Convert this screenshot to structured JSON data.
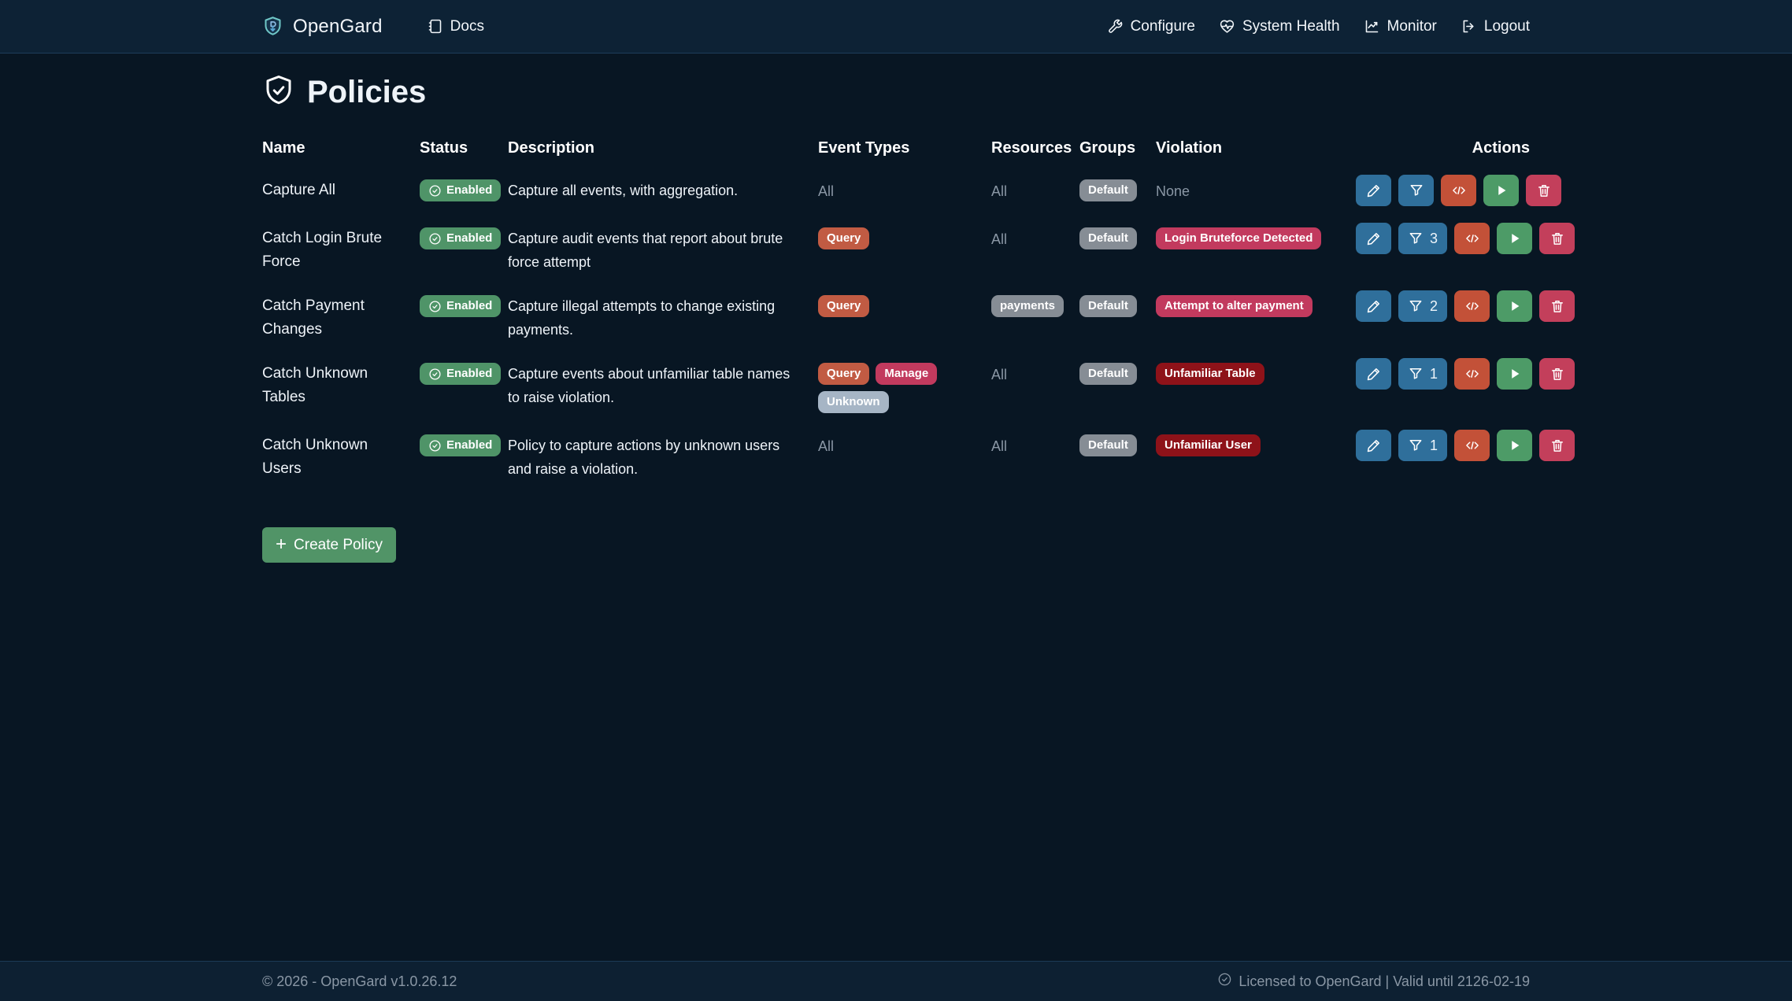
{
  "navbar": {
    "brand": "OpenGard",
    "brand_icon": "shield-logo-icon",
    "docs": {
      "label": "Docs",
      "icon": "book-icon"
    },
    "right_links": [
      {
        "label": "Configure",
        "icon": "wrench-icon"
      },
      {
        "label": "System Health",
        "icon": "heart-pulse-icon"
      },
      {
        "label": "Monitor",
        "icon": "chart-icon"
      },
      {
        "label": "Logout",
        "icon": "logout-icon"
      }
    ]
  },
  "page": {
    "title": "Policies",
    "icon": "shield-check-icon"
  },
  "table": {
    "headers": [
      "Name",
      "Status",
      "Description",
      "Event Types",
      "Resources",
      "Groups",
      "Violation",
      "Actions"
    ],
    "action_icons": [
      "pencil-icon",
      "funnel-icon",
      "code-icon",
      "play-icon",
      "trash-icon"
    ],
    "rows": [
      {
        "name": "Capture All",
        "status": "Enabled",
        "description": "Capture all events, with aggregation.",
        "event_types": [
          {
            "label": "All",
            "variant": "text"
          }
        ],
        "resources": [
          {
            "label": "All",
            "variant": "text"
          }
        ],
        "groups": [
          {
            "label": "Default",
            "variant": "gray"
          }
        ],
        "violation": [
          {
            "label": "None",
            "variant": "text"
          }
        ],
        "filter_count": ""
      },
      {
        "name": "Catch Login Brute Force",
        "status": "Enabled",
        "description": "Capture audit events that report about brute force attempt",
        "event_types": [
          {
            "label": "Query",
            "variant": "orange"
          }
        ],
        "resources": [
          {
            "label": "All",
            "variant": "text"
          }
        ],
        "groups": [
          {
            "label": "Default",
            "variant": "gray"
          }
        ],
        "violation": [
          {
            "label": "Login Bruteforce Detected",
            "variant": "crimson"
          }
        ],
        "filter_count": "3"
      },
      {
        "name": "Catch Payment Changes",
        "status": "Enabled",
        "description": "Capture illegal attempts to change existing payments.",
        "event_types": [
          {
            "label": "Query",
            "variant": "orange"
          }
        ],
        "resources": [
          {
            "label": "payments",
            "variant": "gray"
          }
        ],
        "groups": [
          {
            "label": "Default",
            "variant": "gray"
          }
        ],
        "violation": [
          {
            "label": "Attempt to alter payment",
            "variant": "crimson"
          }
        ],
        "filter_count": "2"
      },
      {
        "name": "Catch Unknown Tables",
        "status": "Enabled",
        "description": "Capture events about unfamiliar table names to raise violation.",
        "event_types": [
          {
            "label": "Query",
            "variant": "orange"
          },
          {
            "label": "Manage",
            "variant": "crimson"
          },
          {
            "label": "Unknown",
            "variant": "slate"
          }
        ],
        "resources": [
          {
            "label": "All",
            "variant": "text"
          }
        ],
        "groups": [
          {
            "label": "Default",
            "variant": "gray"
          }
        ],
        "violation": [
          {
            "label": "Unfamiliar Table",
            "variant": "darkred"
          }
        ],
        "filter_count": "1"
      },
      {
        "name": "Catch Unknown Users",
        "status": "Enabled",
        "description": "Policy to capture actions by unknown users and raise a violation.",
        "event_types": [
          {
            "label": "All",
            "variant": "text"
          }
        ],
        "resources": [
          {
            "label": "All",
            "variant": "text"
          }
        ],
        "groups": [
          {
            "label": "Default",
            "variant": "gray"
          }
        ],
        "violation": [
          {
            "label": "Unfamiliar User",
            "variant": "darkred"
          }
        ],
        "filter_count": "1"
      }
    ]
  },
  "create_button": {
    "label": "Create Policy",
    "icon": "plus-icon"
  },
  "footer": {
    "left": "© 2026 - OpenGard v1.0.26.12",
    "right": "Licensed to OpenGard | Valid until 2126-02-19",
    "right_icon": "check-circle-icon"
  },
  "colors": {
    "navbar_bg": "#0d2235",
    "body_bg": "#081623",
    "footer_bg": "#0d2032",
    "status_green": "#4f9468",
    "badge_gray": "#868d95",
    "badge_orange": "#c15b43",
    "badge_crimson": "#c23a5e",
    "badge_slate": "#a6b5c5",
    "badge_darkred": "#8e1219",
    "button_blue": "#2f6f9b",
    "button_orange": "#c35138",
    "button_green": "#4d9b67",
    "button_red": "#c33f5b",
    "create_green": "#519467",
    "muted_text": "#8a97a5"
  }
}
